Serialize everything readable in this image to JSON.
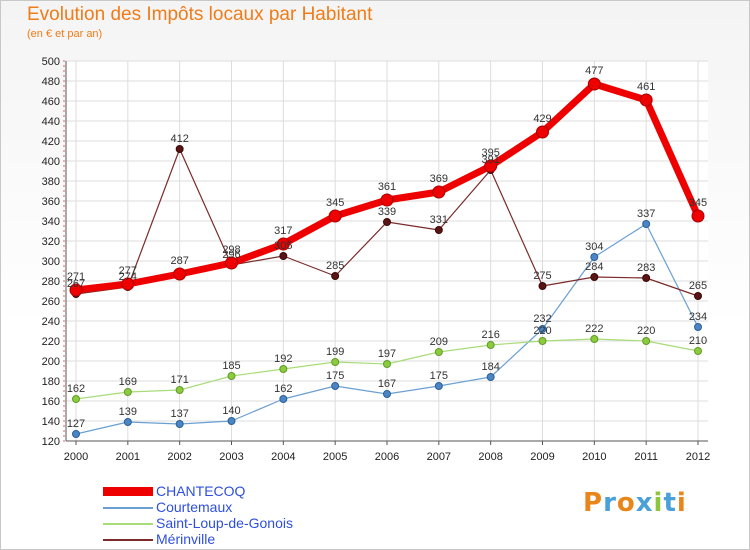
{
  "title": "Evolution des Impôts locaux par Habitant",
  "subtitle": "(en € et par an)",
  "brand": "Proxiti",
  "chart_data": {
    "type": "line",
    "title": "Evolution des Impôts locaux par Habitant",
    "subtitle": "(en € et par an)",
    "xlabel": "",
    "ylabel": "",
    "x": [
      2000,
      2001,
      2002,
      2003,
      2004,
      2005,
      2006,
      2007,
      2008,
      2009,
      2010,
      2011,
      2012
    ],
    "ylim": [
      120,
      500
    ],
    "yticks": [
      120,
      140,
      160,
      180,
      200,
      220,
      240,
      260,
      280,
      300,
      320,
      340,
      360,
      380,
      400,
      420,
      440,
      460,
      480,
      500
    ],
    "grid": true,
    "legend_position": "bottom-left",
    "series": [
      {
        "name": "CHANTECOQ",
        "color": "#ee0000",
        "values": [
          271,
          277,
          287,
          298,
          317,
          345,
          361,
          369,
          395,
          429,
          477,
          461,
          345
        ]
      },
      {
        "name": "Courtemaux",
        "color": "#6a9fd2",
        "values": [
          127,
          139,
          137,
          140,
          162,
          175,
          167,
          175,
          184,
          232,
          304,
          337,
          234
        ]
      },
      {
        "name": "Saint-Loup-de-Gonois",
        "color": "#a8dc78",
        "values": [
          162,
          169,
          171,
          185,
          192,
          199,
          197,
          209,
          216,
          220,
          222,
          220,
          210
        ]
      },
      {
        "name": "Mérinville",
        "color": "#7b2b2b",
        "values": [
          267,
          274,
          412,
          296,
          305,
          285,
          339,
          331,
          391,
          275,
          284,
          283,
          265
        ]
      }
    ]
  }
}
